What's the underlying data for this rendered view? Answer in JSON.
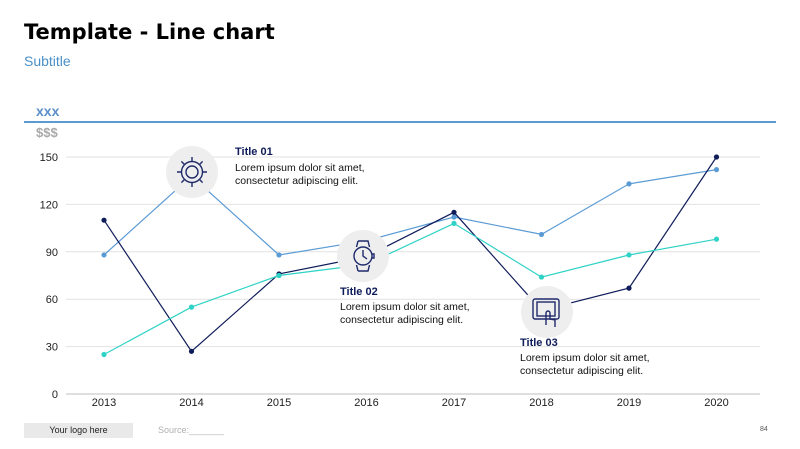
{
  "header": {
    "title": "Template - Line chart",
    "subtitle": "Subtitle"
  },
  "chart_header": {
    "series_label": "xxx",
    "unit_label": "$$$"
  },
  "chart_data": {
    "type": "line",
    "x": [
      "2013",
      "2014",
      "2015",
      "2016",
      "2017",
      "2018",
      "2019",
      "2020"
    ],
    "ylim": [
      0,
      150
    ],
    "yticks": [
      0,
      30,
      60,
      90,
      120,
      150
    ],
    "grid": true,
    "series": [
      {
        "color": "#5b9bd5",
        "values": [
          88,
          138,
          88,
          97,
          112,
          101,
          133,
          142
        ]
      },
      {
        "color": "#0f1c5a",
        "values": [
          110,
          27,
          76,
          87,
          115,
          53,
          67,
          150
        ]
      },
      {
        "color": "#2ed3c6",
        "values": [
          25,
          55,
          75,
          82,
          108,
          74,
          88,
          98
        ]
      }
    ]
  },
  "callouts": [
    {
      "title": "Title 01",
      "line1": "Lorem ipsum dolor sit amet,",
      "line2": "consectetur adipiscing elit.",
      "icon": "gear-icon"
    },
    {
      "title": "Title 02",
      "line1": "Lorem ipsum dolor sit amet,",
      "line2": "consectetur adipiscing elit.",
      "icon": "watch-icon"
    },
    {
      "title": "Title 03",
      "line1": "Lorem ipsum dolor sit amet,",
      "line2": "consectetur adipiscing elit.",
      "icon": "touch-device-icon"
    }
  ],
  "footer": {
    "logo": "Your logo here",
    "source": "Source:_______",
    "page_number": "84"
  }
}
